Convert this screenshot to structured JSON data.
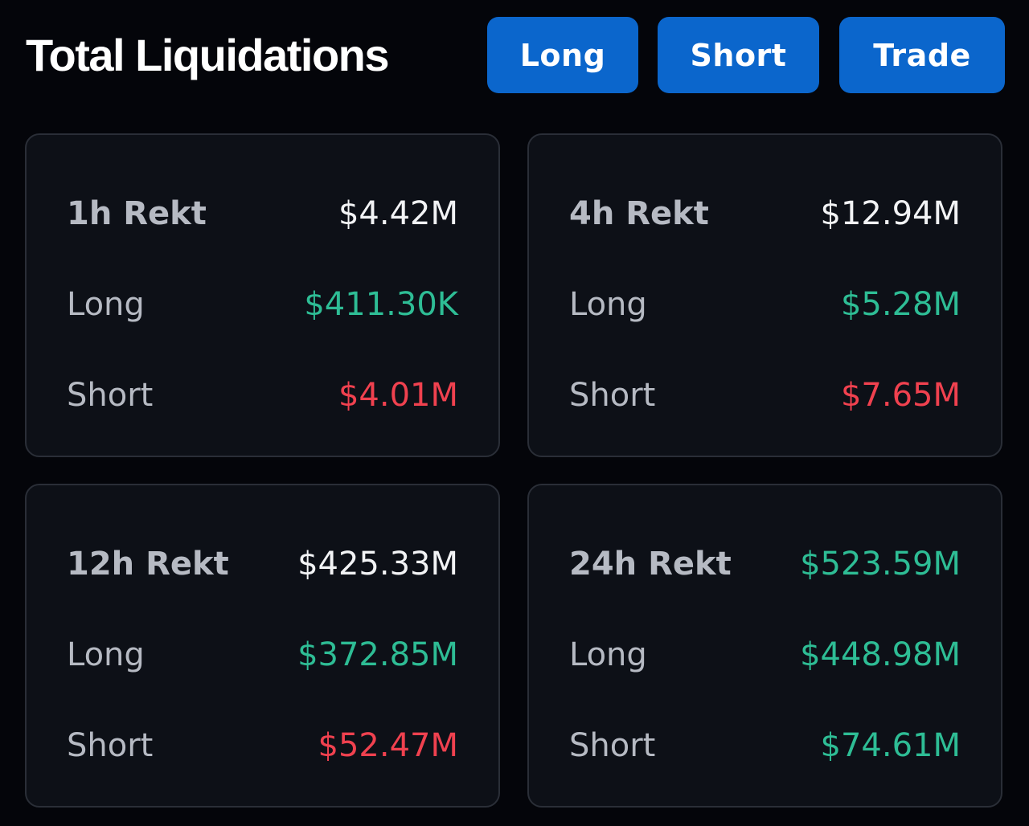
{
  "header": {
    "title": "Total Liquidations",
    "buttons": {
      "long": "Long",
      "short": "Short",
      "trade": "Trade"
    }
  },
  "colors": {
    "background": "#04050a",
    "card": "#0d1017",
    "accent_button": "#0b66cc",
    "positive": "#2ebd95",
    "negative": "#f0414f"
  },
  "cards": {
    "h1": {
      "title": "1h Rekt",
      "total": "$4.42M",
      "long_label": "Long",
      "long_value": "$411.30K",
      "short_label": "Short",
      "short_value": "$4.01M"
    },
    "h4": {
      "title": "4h Rekt",
      "total": "$12.94M",
      "long_label": "Long",
      "long_value": "$5.28M",
      "short_label": "Short",
      "short_value": "$7.65M"
    },
    "h12": {
      "title": "12h Rekt",
      "total": "$425.33M",
      "long_label": "Long",
      "long_value": "$372.85M",
      "short_label": "Short",
      "short_value": "$52.47M"
    },
    "h24": {
      "title": "24h Rekt",
      "total": "$523.59M",
      "long_label": "Long",
      "long_value": "$448.98M",
      "short_label": "Short",
      "short_value": "$74.61M"
    }
  }
}
